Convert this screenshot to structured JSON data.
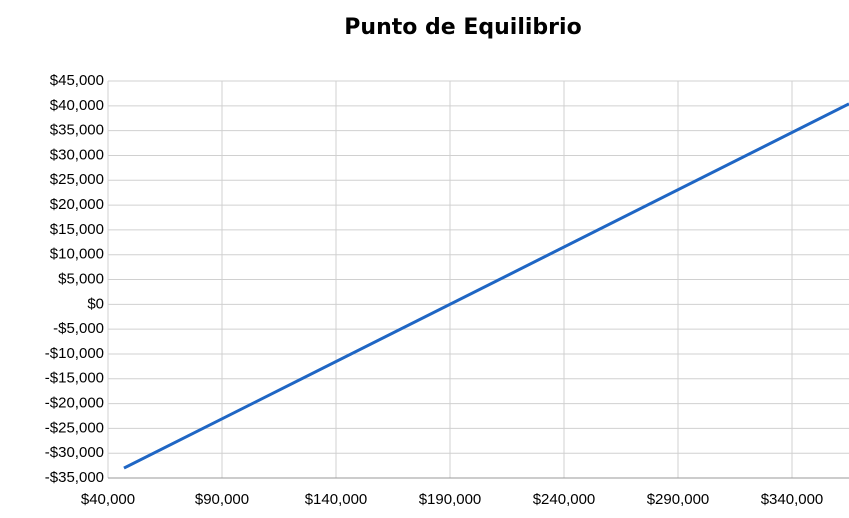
{
  "chart_data": {
    "type": "line",
    "title": "Punto de Equilibrio",
    "x": [
      47000,
      365000
    ],
    "series": [
      {
        "name": "Punto de Equilibrio",
        "color": "#1f66c4",
        "values": [
          -33000,
          40400
        ]
      }
    ],
    "xlim": [
      40000,
      365000
    ],
    "ylim": [
      -35000,
      45000
    ],
    "xticks": [
      {
        "value": 40000,
        "label": "$40,000"
      },
      {
        "value": 90000,
        "label": "$90,000"
      },
      {
        "value": 140000,
        "label": "$140,000"
      },
      {
        "value": 190000,
        "label": "$190,000"
      },
      {
        "value": 240000,
        "label": "$240,000"
      },
      {
        "value": 290000,
        "label": "$290,000"
      },
      {
        "value": 340000,
        "label": "$340,000"
      }
    ],
    "yticks": [
      {
        "value": -35000,
        "label": "-$35,000"
      },
      {
        "value": -30000,
        "label": "-$30,000"
      },
      {
        "value": -25000,
        "label": "-$25,000"
      },
      {
        "value": -20000,
        "label": "-$20,000"
      },
      {
        "value": -15000,
        "label": "-$15,000"
      },
      {
        "value": -10000,
        "label": "-$10,000"
      },
      {
        "value": -5000,
        "label": "-$5,000"
      },
      {
        "value": 0,
        "label": "$0"
      },
      {
        "value": 5000,
        "label": "$5,000"
      },
      {
        "value": 10000,
        "label": "$10,000"
      },
      {
        "value": 15000,
        "label": "$15,000"
      },
      {
        "value": 20000,
        "label": "$20,000"
      },
      {
        "value": 25000,
        "label": "$25,000"
      },
      {
        "value": 30000,
        "label": "$30,000"
      },
      {
        "value": 35000,
        "label": "$35,000"
      },
      {
        "value": 40000,
        "label": "$40,000"
      },
      {
        "value": 45000,
        "label": "$45,000"
      }
    ],
    "grid": true
  }
}
